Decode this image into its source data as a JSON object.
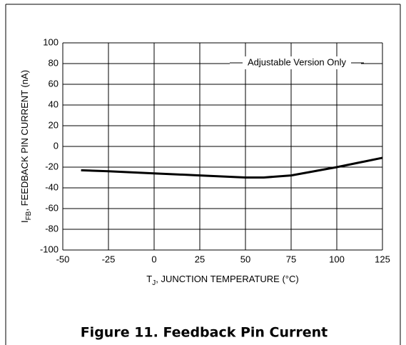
{
  "chart_data": {
    "type": "line",
    "xlabel": [
      "T",
      "J",
      ", JUNCTION TEMPERATURE (°C)"
    ],
    "ylabel": [
      "I",
      "FB",
      ", FEEDBACK PIN CURRENT (nA)"
    ],
    "annotation": "Adjustable Version Only",
    "caption": "Figure 11. Feedback Pin Current",
    "x": [
      -40,
      -25,
      0,
      25,
      50,
      60,
      75,
      100,
      125
    ],
    "series": [
      {
        "color": "#000000",
        "values": [
          -23,
          -24,
          -26,
          -28,
          -30,
          -30,
          -28,
          -20,
          -11
        ]
      }
    ],
    "xlim": [
      -50,
      125
    ],
    "xticks": [
      -50,
      -25,
      0,
      25,
      50,
      75,
      100,
      125
    ],
    "ylim": [
      -100,
      100
    ],
    "yticks": [
      -100,
      -80,
      -60,
      -40,
      -20,
      0,
      20,
      40,
      60,
      80,
      100
    ],
    "grid": true
  }
}
